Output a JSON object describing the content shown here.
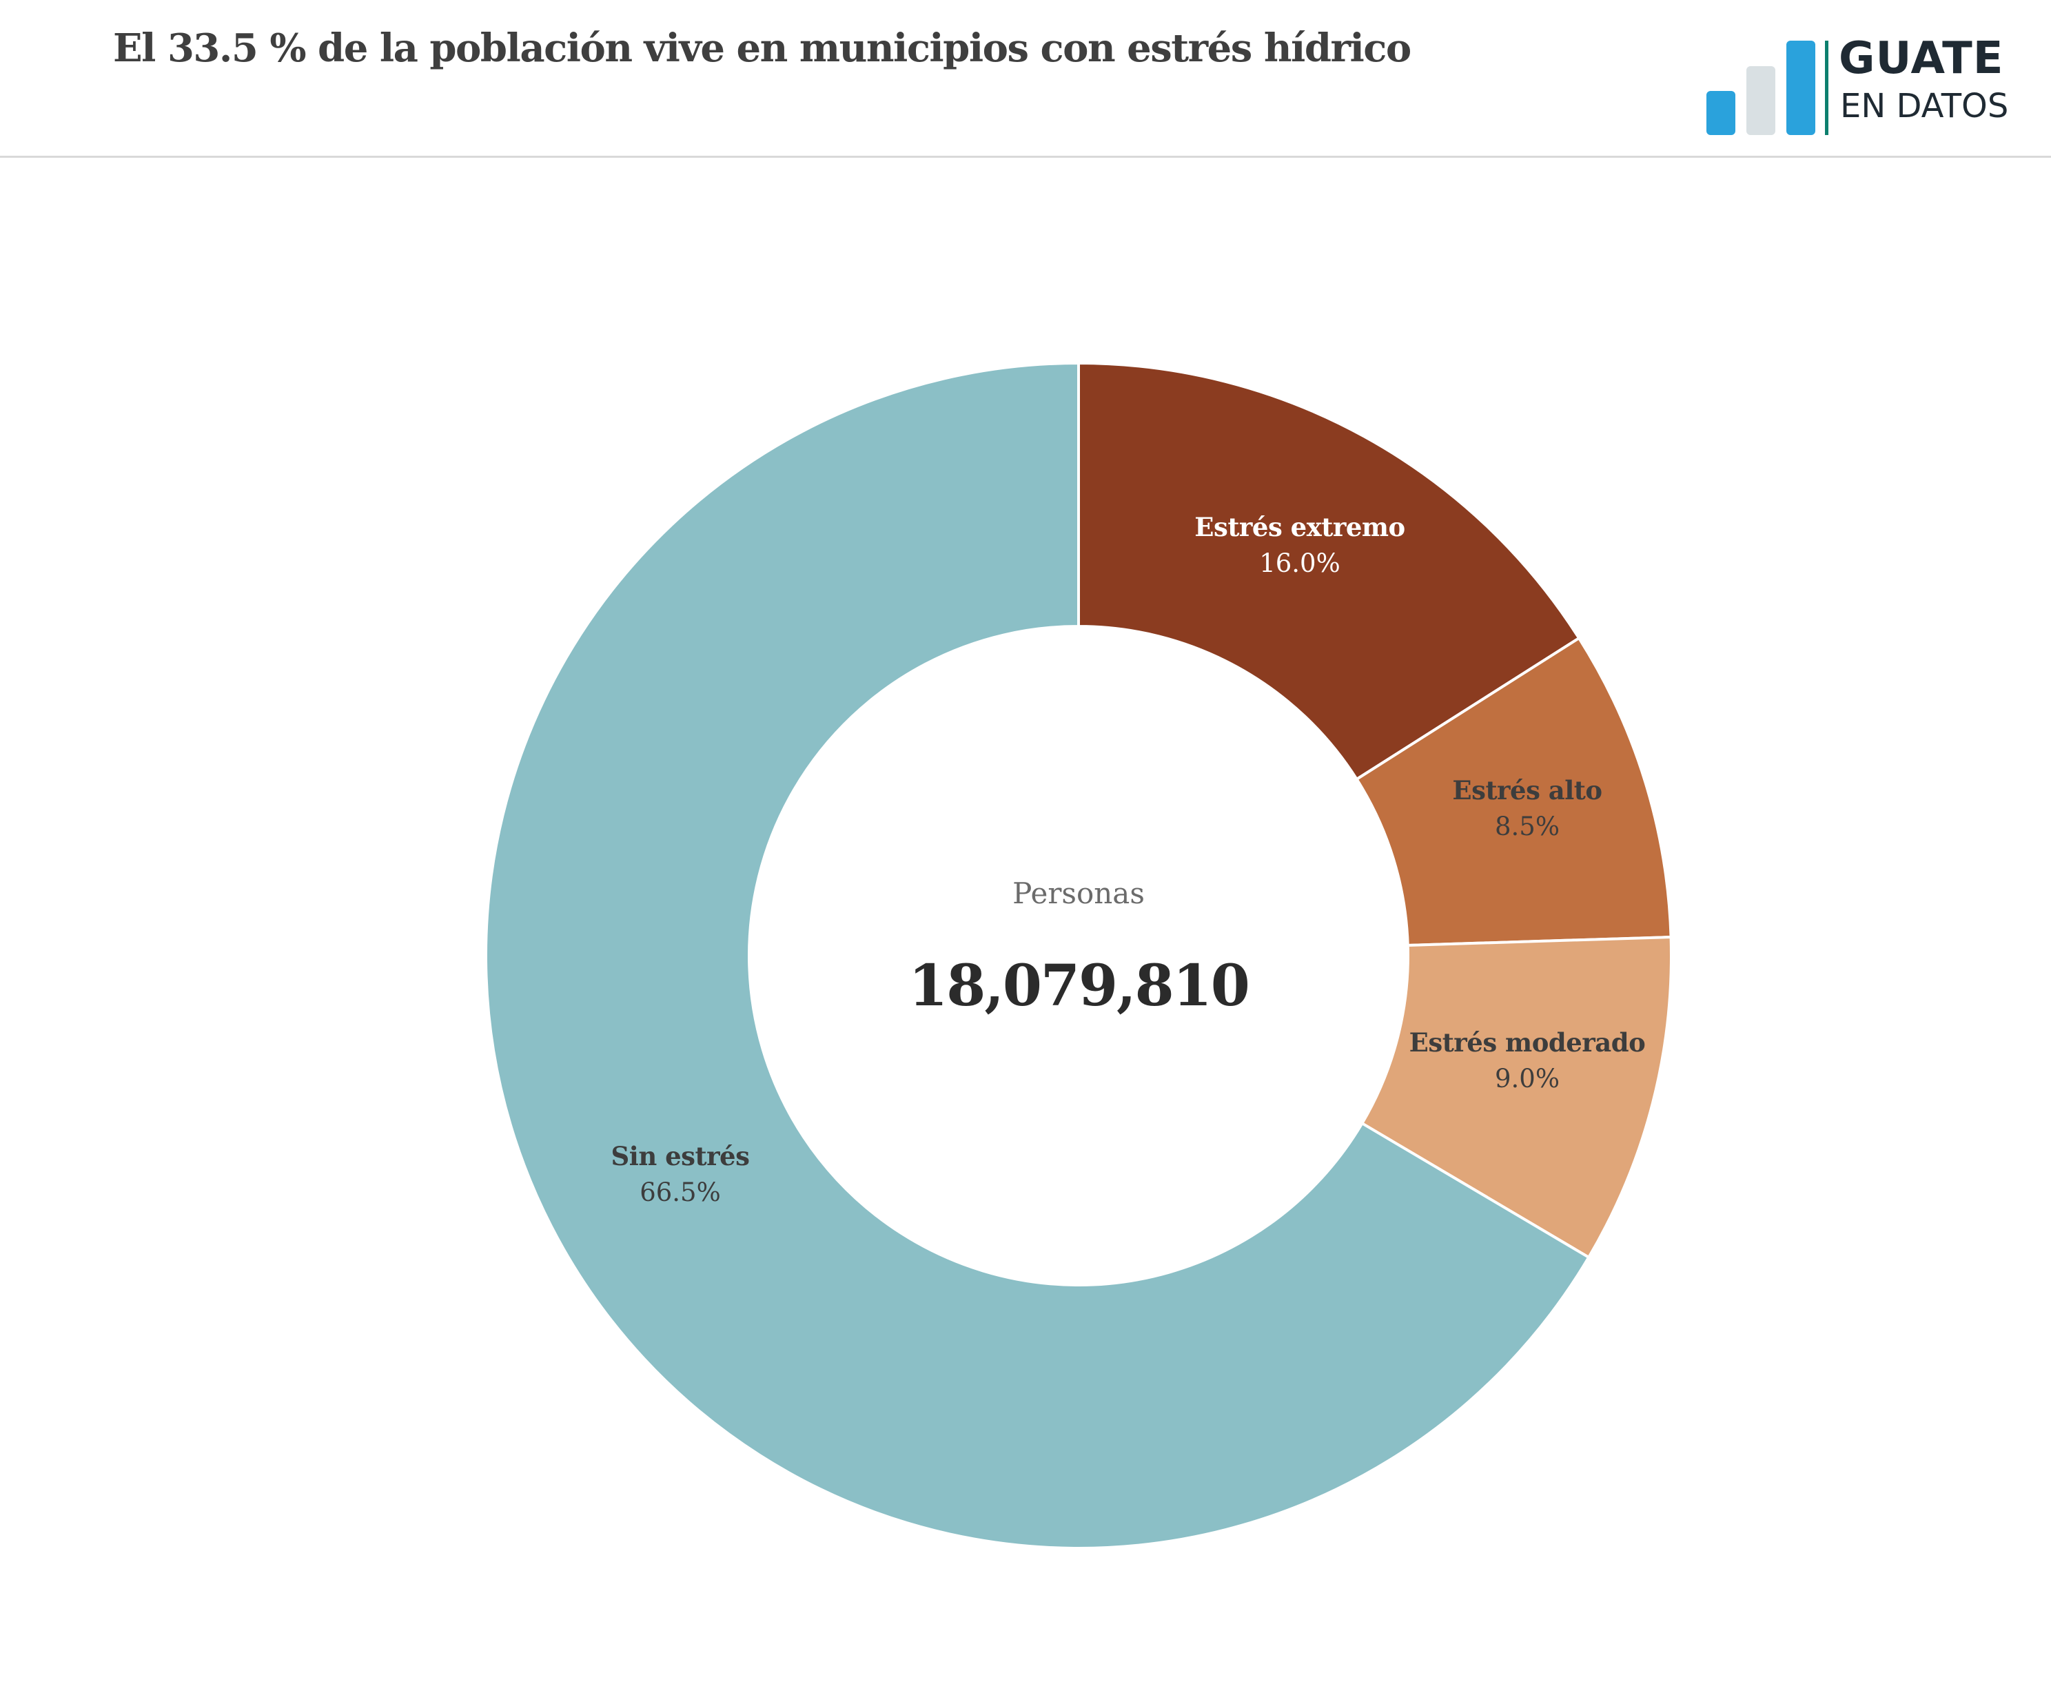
{
  "title": "El 33.5 % de la población vive en municipios con estrés hídrico",
  "logo": {
    "line1": "GUATE",
    "line2": "EN DATOS"
  },
  "chart_data": {
    "type": "pie",
    "variant": "donut",
    "center_label": "Personas",
    "center_value": "18,079,810",
    "slices": [
      {
        "label": "Estrés extremo",
        "value": 16.0,
        "display": "16.0%",
        "color": "#8b3c20",
        "text_color": "#ffffff"
      },
      {
        "label": "Estrés alto",
        "value": 8.5,
        "display": "8.5%",
        "color": "#c07040",
        "text_color": "#3d3d3d"
      },
      {
        "label": "Estrés moderado",
        "value": 9.0,
        "display": "9.0%",
        "color": "#e0a679",
        "text_color": "#3d3d3d"
      },
      {
        "label": "Sin estrés",
        "value": 66.5,
        "display": "66.5%",
        "color": "#8bbfc6",
        "text_color": "#3d3d3d"
      }
    ],
    "start": "top",
    "direction": "clockwise"
  }
}
